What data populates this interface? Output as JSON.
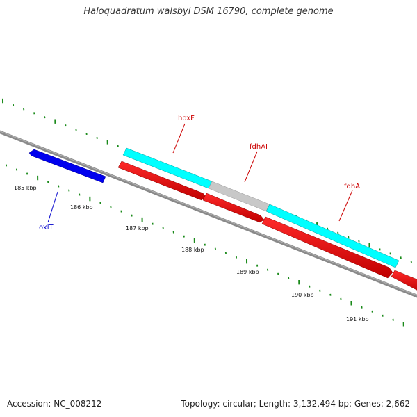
{
  "title": "Haloquadratum walsbyi DSM 16790, complete genome",
  "footer": {
    "accession": "Accession: NC_008212",
    "summary": "Topology: circular; Length: 3,132,494 bp; Genes: 2,662"
  },
  "ruler": {
    "unit": "kbp",
    "labels": [
      "185 kbp",
      "186 kbp",
      "187 kbp",
      "188 kbp",
      "189 kbp",
      "190 kbp",
      "191 kbp"
    ]
  },
  "genes": [
    {
      "name": "oxlT",
      "color": "#0000ee",
      "label_color": "#0000cc",
      "strand": "forward"
    },
    {
      "name": "hoxF",
      "color": "#00ffff",
      "label_color": "#cc0000",
      "strand": "reverse"
    },
    {
      "name": "fdhAI",
      "color": "#c8c8c8",
      "label_color": "#cc0000",
      "strand": "reverse"
    },
    {
      "name": "fdhAII",
      "color": "#00ffff",
      "label_color": "#cc0000",
      "strand": "reverse"
    }
  ],
  "colors": {
    "backbone": "#808080",
    "tick": "#1a8a1a",
    "cds": "#ee0000",
    "gene_cyan": "#00ffff",
    "gene_gray": "#c8c8c8",
    "gene_blue": "#0000ee"
  }
}
